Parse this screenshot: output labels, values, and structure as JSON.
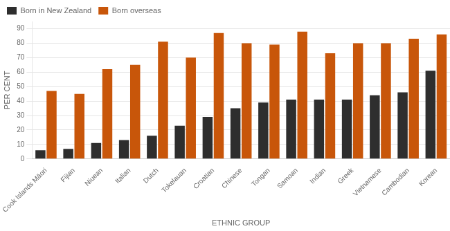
{
  "chart_data": {
    "type": "bar",
    "categories": [
      "Cook Islands Māori",
      "Fijian",
      "Niuean",
      "Italian",
      "Dutch",
      "Tokelauan",
      "Croatian",
      "Chinese",
      "Tongan",
      "Samoan",
      "Indian",
      "Greek",
      "Vietnamese",
      "Cambodian",
      "Korean"
    ],
    "series": [
      {
        "name": "Born in New Zealand",
        "color": "#2e2e2e",
        "values": [
          6,
          7,
          11,
          13,
          16,
          23,
          29,
          35,
          39,
          41,
          41,
          41,
          44,
          46,
          61
        ]
      },
      {
        "name": "Born overseas",
        "color": "#c8560a",
        "values": [
          47,
          45,
          62,
          65,
          81,
          70,
          87,
          80,
          79,
          88,
          73,
          80,
          80,
          83,
          86
        ]
      }
    ],
    "x_label": "ETHNIC GROUP",
    "y_label": "PER CENT",
    "ylim": [
      0,
      95
    ],
    "yticks": [
      0,
      10,
      20,
      30,
      40,
      50,
      60,
      70,
      80,
      90
    ],
    "grid": true,
    "legend": "upper left"
  }
}
